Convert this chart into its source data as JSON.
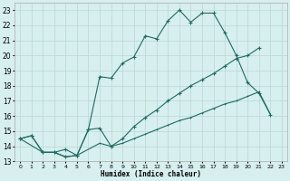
{
  "xlabel": "Humidex (Indice chaleur)",
  "background_color": "#d7efee",
  "grid_color": "#b8d8d6",
  "line_color": "#1e6b63",
  "xlim": [
    -0.5,
    23.5
  ],
  "ylim": [
    13,
    23.5
  ],
  "xticks": [
    0,
    1,
    2,
    3,
    4,
    5,
    6,
    7,
    8,
    9,
    10,
    11,
    12,
    13,
    14,
    15,
    16,
    17,
    18,
    19,
    20,
    21,
    22,
    23
  ],
  "yticks": [
    13,
    14,
    15,
    16,
    17,
    18,
    19,
    20,
    21,
    22,
    23
  ],
  "line1_x": [
    0,
    1,
    2,
    3,
    4,
    5,
    6,
    7,
    8,
    9,
    10,
    11,
    12,
    13,
    14,
    15,
    16,
    17,
    18,
    19,
    20,
    21,
    22
  ],
  "line1_y": [
    14.5,
    14.7,
    13.6,
    13.6,
    13.8,
    13.4,
    15.1,
    18.6,
    18.5,
    19.5,
    19.9,
    21.3,
    21.1,
    22.3,
    23.0,
    22.2,
    22.8,
    22.8,
    21.5,
    20.0,
    18.2,
    17.5,
    16.1
  ],
  "line2_x": [
    0,
    1,
    2,
    3,
    4,
    5,
    6,
    7,
    8,
    9,
    10,
    11,
    12,
    13,
    14,
    15,
    16,
    17,
    18,
    19,
    20,
    21
  ],
  "line2_y": [
    14.5,
    14.7,
    13.6,
    13.6,
    13.3,
    13.4,
    15.1,
    15.2,
    14.0,
    14.5,
    15.3,
    15.9,
    16.4,
    17.0,
    17.5,
    18.0,
    18.4,
    18.8,
    19.3,
    19.8,
    20.0,
    20.5
  ],
  "line3_x": [
    0,
    2,
    3,
    4,
    5,
    7,
    8,
    9,
    10,
    11,
    12,
    13,
    14,
    15,
    16,
    17,
    18,
    19,
    20,
    21,
    22
  ],
  "line3_y": [
    14.5,
    13.6,
    13.6,
    13.3,
    13.4,
    14.2,
    14.0,
    14.2,
    14.5,
    14.8,
    15.1,
    15.4,
    15.7,
    15.9,
    16.2,
    16.5,
    16.8,
    17.0,
    17.3,
    17.6,
    16.1
  ]
}
